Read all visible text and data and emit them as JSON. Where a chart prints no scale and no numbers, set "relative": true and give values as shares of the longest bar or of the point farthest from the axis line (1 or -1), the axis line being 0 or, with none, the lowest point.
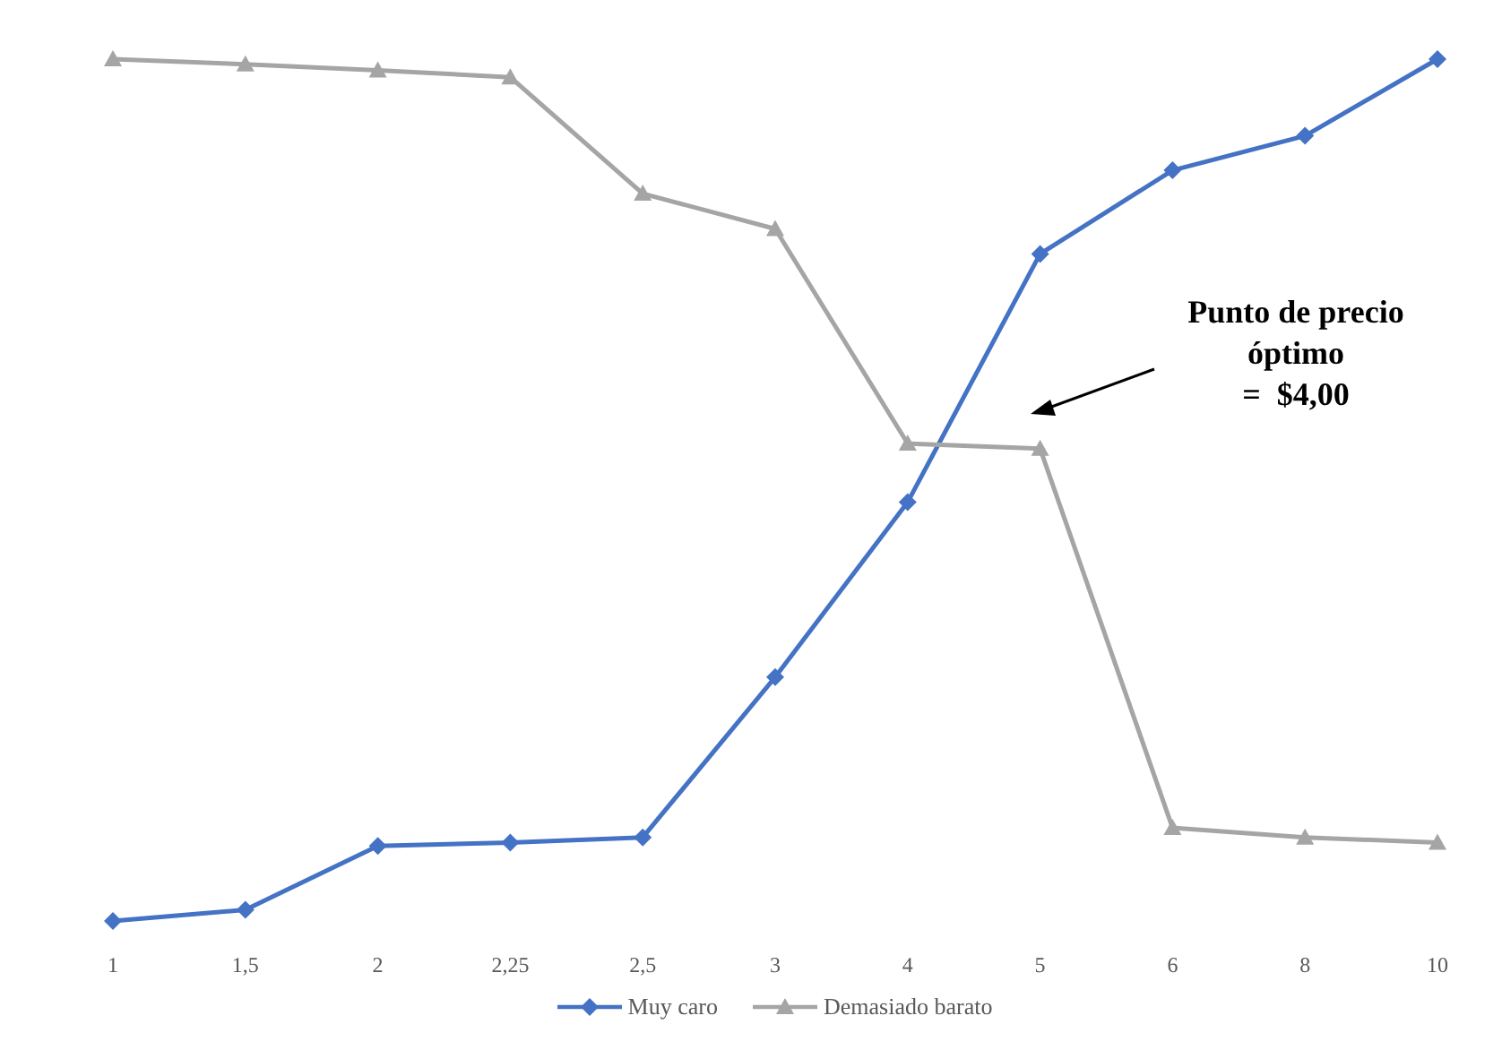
{
  "chart_data": {
    "type": "line",
    "relative": true,
    "categories": [
      "1",
      "1,5",
      "2",
      "2,25",
      "2,5",
      "3",
      "4",
      "5",
      "6",
      "8",
      "10"
    ],
    "series": [
      {
        "name": "Muy caro",
        "color": "#4472c4",
        "marker": "diamond",
        "values": [
          0,
          0.013,
          0.087,
          0.091,
          0.097,
          0.283,
          0.486,
          0.774,
          0.871,
          0.911,
          1
        ]
      },
      {
        "name": "Demasiado barato",
        "color": "#a5a5a5",
        "marker": "triangle",
        "values": [
          1,
          0.994,
          0.987,
          0.979,
          0.844,
          0.803,
          0.554,
          0.548,
          0.108,
          0.097,
          0.091
        ]
      }
    ],
    "annotations": [
      "Punto de precio\nóptimo\n=  $4,00"
    ],
    "legend": "bottom",
    "grid": false
  }
}
